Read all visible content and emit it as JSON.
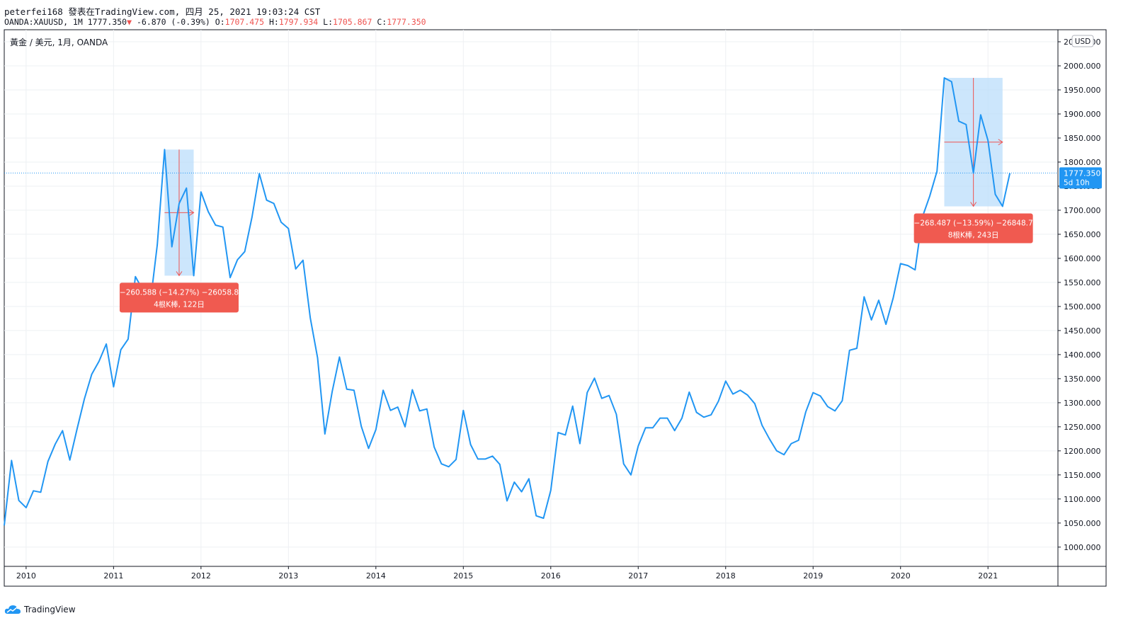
{
  "header": {
    "author": "peterfei168",
    "published": "發表在TradingView.com, 四月 25, 2021 19:03:24 CST",
    "symbol": "OANDA:XAUUSD, 1M",
    "last": "1777.350",
    "change_arrow": "▼",
    "change": "-6.870 (-0.39%)",
    "o_label": "O:",
    "o": "1707.475",
    "h_label": "H:",
    "h": "1797.934",
    "l_label": "L:",
    "l": "1705.867",
    "c_label": "C:",
    "c": "1777.350"
  },
  "footer": {
    "brand": "TradingView"
  },
  "colors": {
    "line": "#2196f3",
    "measure_fill": "#bbdefb",
    "measure_arrow": "#ef5350",
    "label_bg": "#f05a50",
    "price_tag": "#2196f3",
    "grid": "#eef0f3"
  },
  "chart_data": {
    "type": "line",
    "title": "黃金 / 美元, 1月, OANDA",
    "currency_label": "USD",
    "x_unit": "fractional year (monthly bars)",
    "x_start": 2009.75,
    "x_step": 0.0833333,
    "xlim": [
      2009.75,
      2021.8
    ],
    "ylim": [
      960,
      2075
    ],
    "x_ticks": [
      "2010",
      "2011",
      "2012",
      "2013",
      "2014",
      "2015",
      "2016",
      "2017",
      "2018",
      "2019",
      "2020",
      "2021"
    ],
    "y_ticks": [
      "1000.000",
      "1050.000",
      "1100.000",
      "1150.000",
      "1200.000",
      "1250.000",
      "1300.000",
      "1350.000",
      "1400.000",
      "1450.000",
      "1500.000",
      "1550.000",
      "1600.000",
      "1650.000",
      "1700.000",
      "1750.000",
      "1800.000",
      "1850.000",
      "1900.000",
      "1950.000",
      "2000.000",
      "2050.000"
    ],
    "values": [
      1045,
      1180,
      1097,
      1082,
      1117,
      1114,
      1178,
      1214,
      1242,
      1181,
      1246,
      1308,
      1359,
      1386,
      1422,
      1333,
      1410,
      1432,
      1562,
      1535,
      1502,
      1628,
      1826,
      1624,
      1714,
      1746,
      1564,
      1738,
      1697,
      1669,
      1665,
      1560,
      1597,
      1614,
      1686,
      1776,
      1721,
      1714,
      1675,
      1662,
      1578,
      1596,
      1476,
      1393,
      1235,
      1323,
      1395,
      1328,
      1326,
      1251,
      1205,
      1244,
      1326,
      1284,
      1291,
      1250,
      1327,
      1283,
      1287,
      1208,
      1173,
      1167,
      1182,
      1284,
      1213,
      1183,
      1183,
      1189,
      1172,
      1096,
      1135,
      1115,
      1142,
      1065,
      1060,
      1118,
      1238,
      1233,
      1293,
      1215,
      1321,
      1351,
      1309,
      1315,
      1276,
      1173,
      1150,
      1210,
      1248,
      1248,
      1268,
      1268,
      1242,
      1268,
      1322,
      1280,
      1270,
      1275,
      1303,
      1345,
      1318,
      1326,
      1316,
      1298,
      1253,
      1225,
      1200,
      1192,
      1215,
      1222,
      1281,
      1321,
      1314,
      1292,
      1283,
      1304,
      1409,
      1413,
      1520,
      1472,
      1513,
      1463,
      1518,
      1589,
      1585,
      1576,
      1686,
      1729,
      1781,
      1975,
      1967,
      1885,
      1878,
      1777,
      1898,
      1845,
      1733,
      1708,
      1777
    ],
    "last_price": "1777.350",
    "last_countdown": "5d 10h",
    "measurements": [
      {
        "start_index": 22,
        "end_index": 26,
        "high": 1826,
        "low": 1564,
        "line1": "−260.588 (−14.27%) −26058.8",
        "line2": "4根K棒, 122日"
      },
      {
        "start_index": 129,
        "end_index": 137,
        "high": 1975,
        "low": 1708,
        "line1": "−268.487 (−13.59%) −26848.7",
        "line2": "8根K棒, 243日"
      }
    ]
  }
}
